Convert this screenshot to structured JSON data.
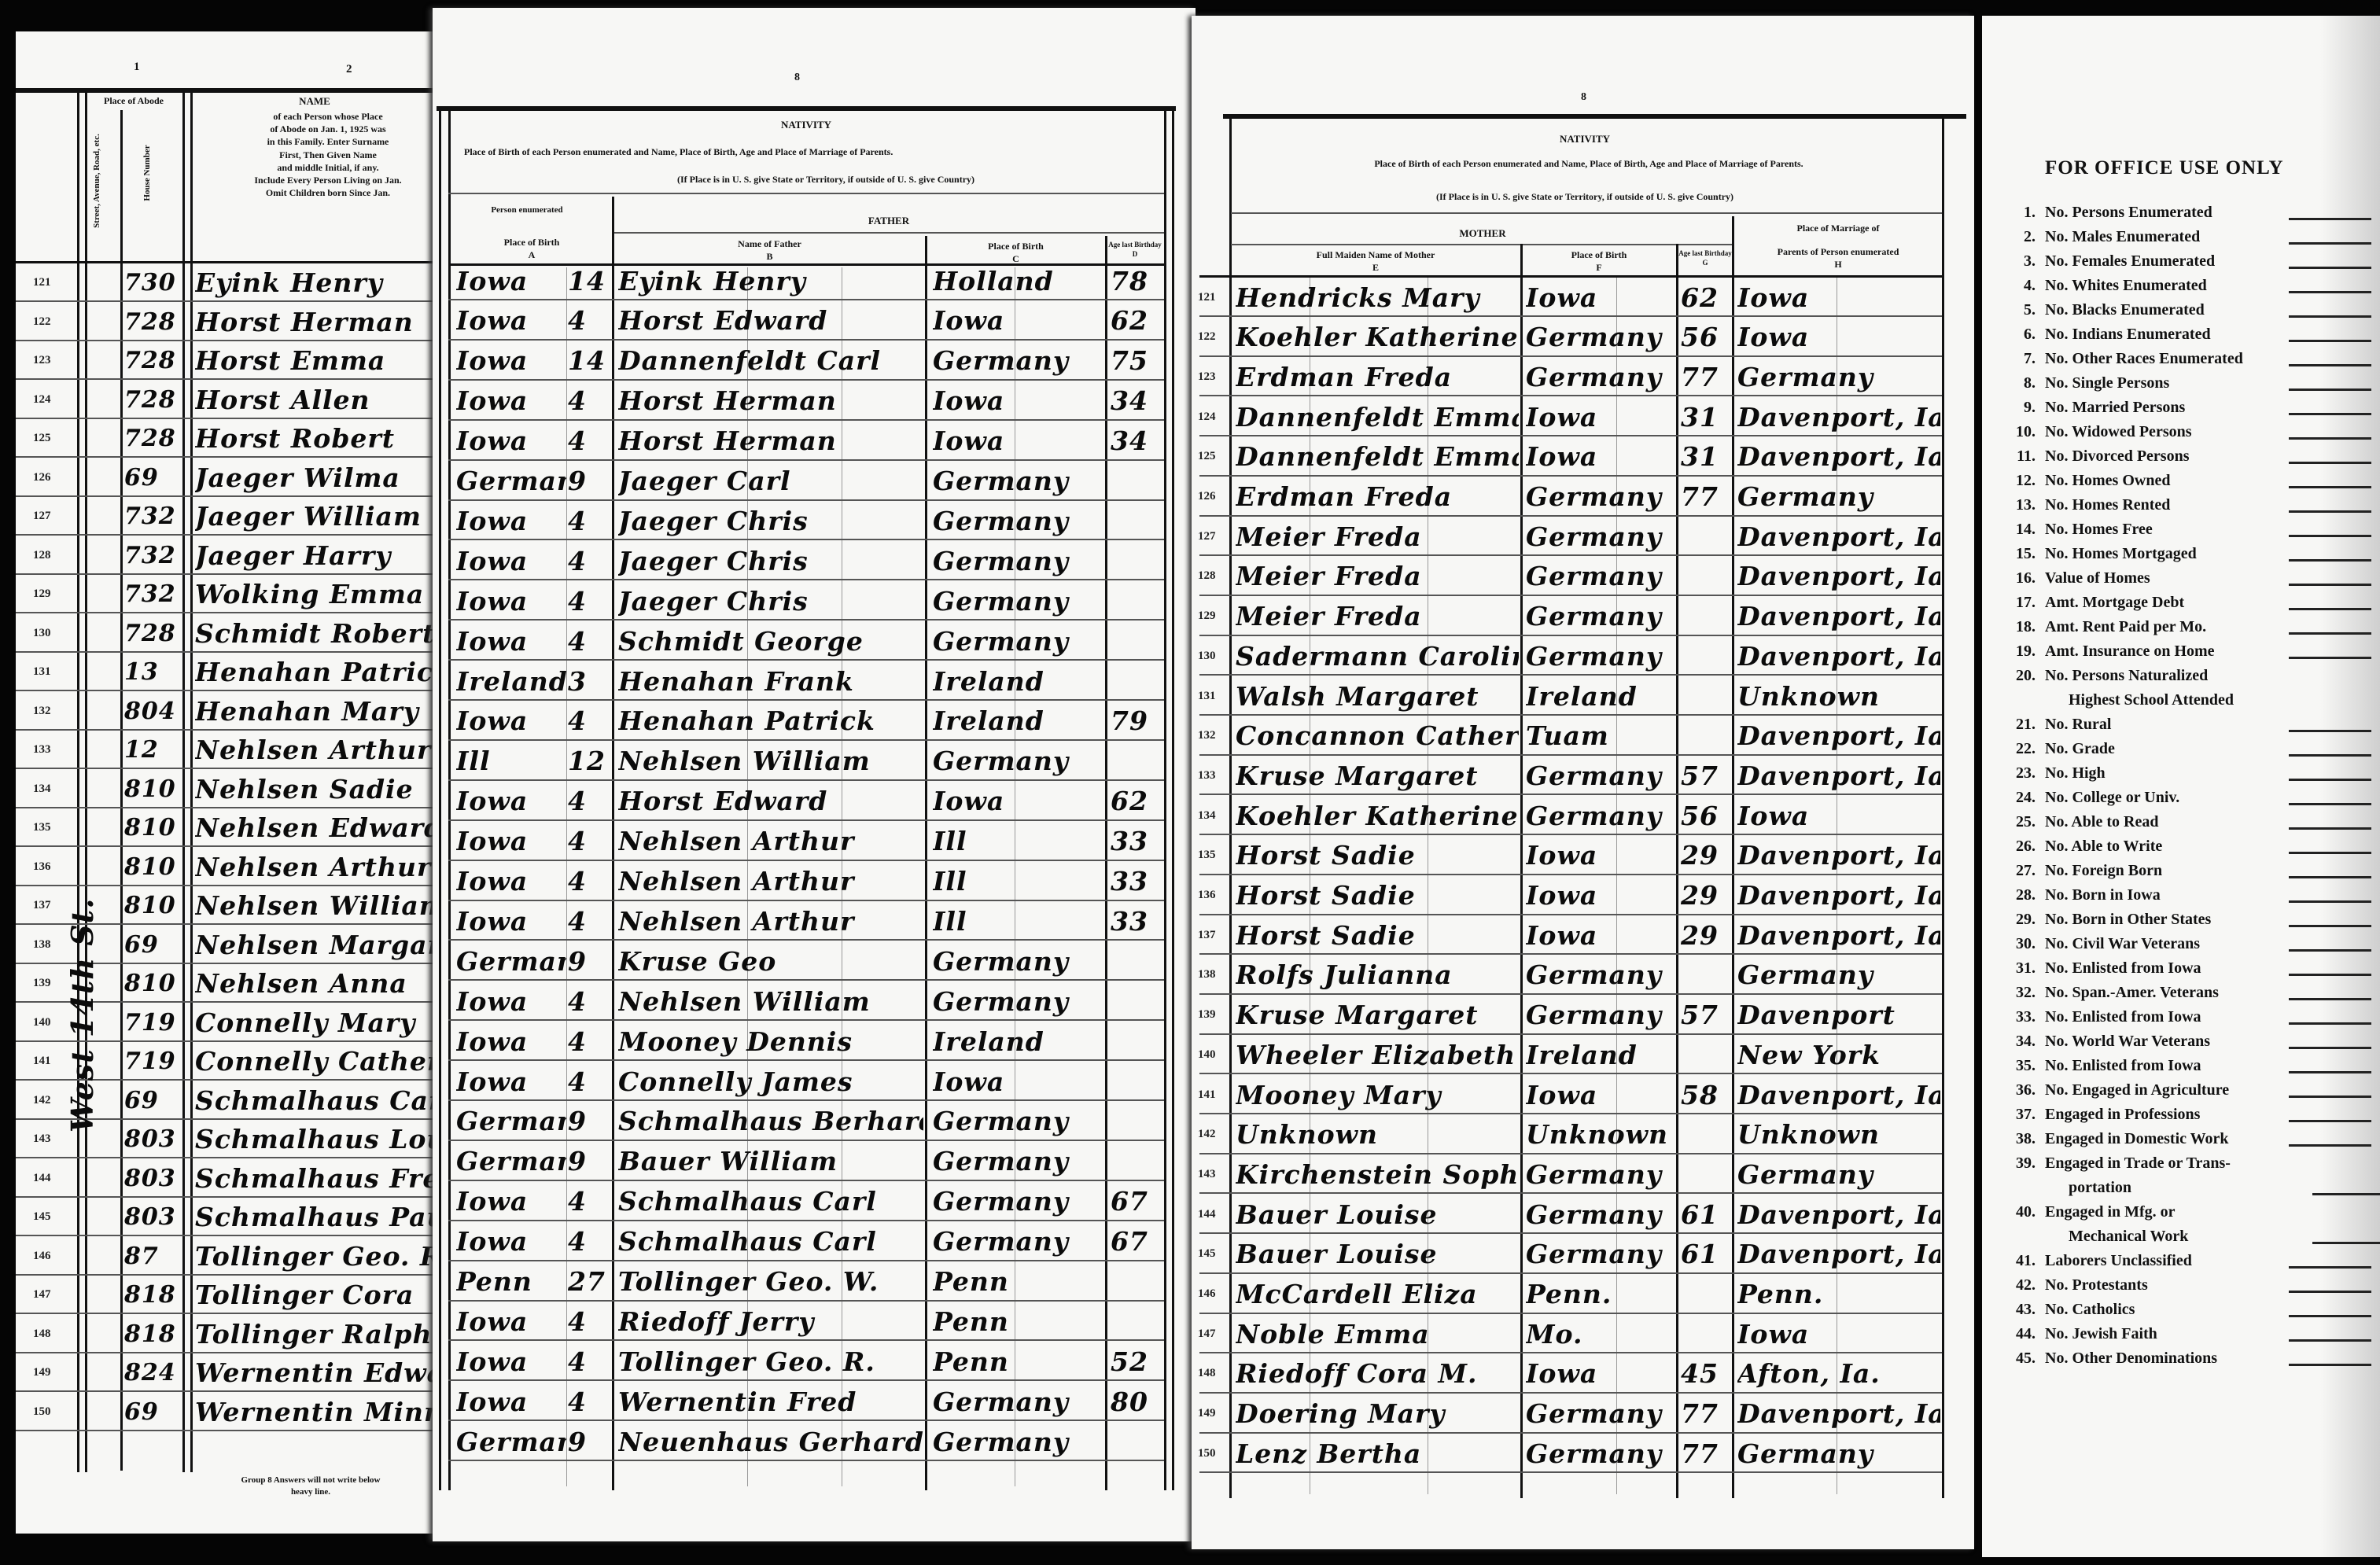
{
  "left_page": {
    "column_numbers": [
      "1",
      "2"
    ],
    "place_of_abode": "Place of Abode",
    "street_header": "Street, Avenue, Road, etc.",
    "house_header": "House Number",
    "name_title": "NAME",
    "name_instructions": [
      "of each Person whose Place",
      "of Abode on Jan. 1, 1925 was",
      "in this Family. Enter Surname",
      "First, Then Given Name",
      "and middle Initial, if any.",
      "Include Every Person Living on Jan.",
      "Omit Children born Since Jan."
    ],
    "street_written": "West 14th St.",
    "footer": [
      "Group 8 Answers will not write below",
      "heavy line."
    ]
  },
  "father_page": {
    "column_number": "8",
    "nativity": "NATIVITY",
    "instruction1": "Place of Birth of each Person enumerated and Name, Place of Birth, Age and Place of Marriage of Parents.",
    "instruction2": "(If Place is in U. S. give State or Territory, if outside of U. S. give Country)",
    "person_enumerated": "Person enumerated",
    "col_a": "Place of Birth",
    "col_a_letter": "A",
    "father": "FATHER",
    "col_b": "Name of Father",
    "col_b_letter": "B",
    "col_c": "Place of Birth",
    "col_c_letter": "C",
    "col_d": "Age last Birthday",
    "col_d_letter": "D"
  },
  "mother_page": {
    "column_number": "8",
    "nativity": "NATIVITY",
    "instruction1": "Place of Birth of each Person enumerated and Name, Place of Birth, Age and Place of Marriage of Parents.",
    "instruction2": "(If Place is in U. S. give State or Territory, if outside of U. S. give Country)",
    "mother": "MOTHER",
    "col_e": "Full Maiden Name of Mother",
    "col_e_letter": "E",
    "col_f": "Place of Birth",
    "col_f_letter": "F",
    "col_g": "Age last Birthday",
    "col_g_letter": "G",
    "col_h_1": "Place of Marriage of",
    "col_h_2": "Parents of Person enumerated",
    "col_h_letter": "H"
  },
  "rows": [
    {
      "line": "121",
      "house": "730",
      "name": "Eyink Henry",
      "birth": "Iowa",
      "code": "14",
      "father": "Eyink Henry",
      "father_birth": "Holland",
      "father_age": "78",
      "mother": "Hendricks Mary",
      "mother_birth": "Iowa",
      "mother_age": "62",
      "marriage": "Iowa"
    },
    {
      "line": "122",
      "house": "728",
      "name": "Horst Herman",
      "birth": "Iowa",
      "code": "4",
      "father": "Horst Edward",
      "father_birth": "Iowa",
      "father_age": "62",
      "mother": "Koehler Katherine",
      "mother_birth": "Germany",
      "mother_age": "56",
      "marriage": "Iowa"
    },
    {
      "line": "123",
      "house": "728",
      "name": "Horst Emma",
      "birth": "Iowa",
      "code": "14",
      "father": "Dannenfeldt Carl",
      "father_birth": "Germany",
      "father_age": "75",
      "mother": "Erdman Freda",
      "mother_birth": "Germany",
      "mother_age": "77",
      "marriage": "Germany"
    },
    {
      "line": "124",
      "house": "728",
      "name": "Horst Allen",
      "birth": "Iowa",
      "code": "4",
      "father": "Horst Herman",
      "father_birth": "Iowa",
      "father_age": "34",
      "mother": "Dannenfeldt Emma",
      "mother_birth": "Iowa",
      "mother_age": "31",
      "marriage": "Davenport, Ia"
    },
    {
      "line": "125",
      "house": "728",
      "name": "Horst Robert",
      "birth": "Iowa",
      "code": "4",
      "father": "Horst Herman",
      "father_birth": "Iowa",
      "father_age": "34",
      "mother": "Dannenfeldt Emma",
      "mother_birth": "Iowa",
      "mother_age": "31",
      "marriage": "Davenport, Ia"
    },
    {
      "line": "126",
      "house": "69",
      "name": "Jaeger Wilma",
      "birth": "Germany",
      "code": "9",
      "father": "Jaeger Carl",
      "father_birth": "Germany",
      "father_age": "",
      "mother": "Erdman Freda",
      "mother_birth": "Germany",
      "mother_age": "77",
      "marriage": "Germany"
    },
    {
      "line": "127",
      "house": "732",
      "name": "Jaeger William",
      "birth": "Iowa",
      "code": "4",
      "father": "Jaeger Chris",
      "father_birth": "Germany",
      "father_age": "",
      "mother": "Meier Freda",
      "mother_birth": "Germany",
      "mother_age": "",
      "marriage": "Davenport, Ia"
    },
    {
      "line": "128",
      "house": "732",
      "name": "Jaeger Harry",
      "birth": "Iowa",
      "code": "4",
      "father": "Jaeger Chris",
      "father_birth": "Germany",
      "father_age": "",
      "mother": "Meier Freda",
      "mother_birth": "Germany",
      "mother_age": "",
      "marriage": "Davenport, Ia"
    },
    {
      "line": "129",
      "house": "732",
      "name": "Wolking Emma",
      "birth": "Iowa",
      "code": "4",
      "father": "Jaeger Chris",
      "father_birth": "Germany",
      "father_age": "",
      "mother": "Meier Freda",
      "mother_birth": "Germany",
      "mother_age": "",
      "marriage": "Davenport, Ia"
    },
    {
      "line": "130",
      "house": "728",
      "name": "Schmidt Robert",
      "birth": "Iowa",
      "code": "4",
      "father": "Schmidt George",
      "father_birth": "Germany",
      "father_age": "",
      "mother": "Sadermann Caroline",
      "mother_birth": "Germany",
      "mother_age": "",
      "marriage": "Davenport, Ia"
    },
    {
      "line": "131",
      "house": "13",
      "name": "Henahan Patrick",
      "birth": "Ireland",
      "code": "3",
      "father": "Henahan Frank",
      "father_birth": "Ireland",
      "father_age": "",
      "mother": "Walsh Margaret",
      "mother_birth": "Ireland",
      "mother_age": "",
      "marriage": "Unknown"
    },
    {
      "line": "132",
      "house": "804",
      "name": "Henahan Mary",
      "birth": "Iowa",
      "code": "4",
      "father": "Henahan Patrick",
      "father_birth": "Ireland",
      "father_age": "79",
      "mother": "Concannon Catherine",
      "mother_birth": "Tuam",
      "mother_age": "",
      "marriage": "Davenport, Ia"
    },
    {
      "line": "133",
      "house": "12",
      "name": "Nehlsen Arthur",
      "birth": "Ill",
      "code": "12",
      "father": "Nehlsen William",
      "father_birth": "Germany",
      "father_age": "",
      "mother": "Kruse Margaret",
      "mother_birth": "Germany",
      "mother_age": "57",
      "marriage": "Davenport, Ia"
    },
    {
      "line": "134",
      "house": "810",
      "name": "Nehlsen Sadie",
      "birth": "Iowa",
      "code": "4",
      "father": "Horst Edward",
      "father_birth": "Iowa",
      "father_age": "62",
      "mother": "Koehler Katherine",
      "mother_birth": "Germany",
      "mother_age": "56",
      "marriage": "Iowa"
    },
    {
      "line": "135",
      "house": "810",
      "name": "Nehlsen Edward",
      "birth": "Iowa",
      "code": "4",
      "father": "Nehlsen Arthur",
      "father_birth": "Ill",
      "father_age": "33",
      "mother": "Horst Sadie",
      "mother_birth": "Iowa",
      "mother_age": "29",
      "marriage": "Davenport, Ia"
    },
    {
      "line": "136",
      "house": "810",
      "name": "Nehlsen Arthur",
      "birth": "Iowa",
      "code": "4",
      "father": "Nehlsen Arthur",
      "father_birth": "Ill",
      "father_age": "33",
      "mother": "Horst Sadie",
      "mother_birth": "Iowa",
      "mother_age": "29",
      "marriage": "Davenport, Ia"
    },
    {
      "line": "137",
      "house": "810",
      "name": "Nehlsen William",
      "birth": "Iowa",
      "code": "4",
      "father": "Nehlsen Arthur",
      "father_birth": "Ill",
      "father_age": "33",
      "mother": "Horst Sadie",
      "mother_birth": "Iowa",
      "mother_age": "29",
      "marriage": "Davenport, Ia"
    },
    {
      "line": "138",
      "house": "69",
      "name": "Nehlsen Margaret",
      "birth": "Germany",
      "code": "9",
      "father": "Kruse Geo",
      "father_birth": "Germany",
      "father_age": "",
      "mother": "Rolfs Julianna",
      "mother_birth": "Germany",
      "mother_age": "",
      "marriage": "Germany"
    },
    {
      "line": "139",
      "house": "810",
      "name": "Nehlsen Anna",
      "birth": "Iowa",
      "code": "4",
      "father": "Nehlsen William",
      "father_birth": "Germany",
      "father_age": "",
      "mother": "Kruse Margaret",
      "mother_birth": "Germany",
      "mother_age": "57",
      "marriage": "Davenport"
    },
    {
      "line": "140",
      "house": "719",
      "name": "Connelly Mary",
      "birth": "Iowa",
      "code": "4",
      "father": "Mooney Dennis",
      "father_birth": "Ireland",
      "father_age": "",
      "mother": "Wheeler Elizabeth",
      "mother_birth": "Ireland",
      "mother_age": "",
      "marriage": "New York"
    },
    {
      "line": "141",
      "house": "719",
      "name": "Connelly Catherine",
      "birth": "Iowa",
      "code": "4",
      "father": "Connelly James",
      "father_birth": "Iowa",
      "father_age": "",
      "mother": "Mooney Mary",
      "mother_birth": "Iowa",
      "mother_age": "58",
      "marriage": "Davenport, Ia"
    },
    {
      "line": "142",
      "house": "69",
      "name": "Schmalhaus Carl",
      "birth": "Germany",
      "code": "9",
      "father": "Schmalhaus Berhard",
      "father_birth": "Germany",
      "father_age": "",
      "mother": "Unknown",
      "mother_birth": "Unknown",
      "mother_age": "",
      "marriage": "Unknown"
    },
    {
      "line": "143",
      "house": "803",
      "name": "Schmalhaus Louise",
      "birth": "Germany",
      "code": "9",
      "father": "Bauer William",
      "father_birth": "Germany",
      "father_age": "",
      "mother": "Kirchenstein Sophia",
      "mother_birth": "Germany",
      "mother_age": "",
      "marriage": "Germany"
    },
    {
      "line": "144",
      "house": "803",
      "name": "Schmalhaus Fred",
      "birth": "Iowa",
      "code": "4",
      "father": "Schmalhaus Carl",
      "father_birth": "Germany",
      "father_age": "67",
      "mother": "Bauer Louise",
      "mother_birth": "Germany",
      "mother_age": "61",
      "marriage": "Davenport, Ia"
    },
    {
      "line": "145",
      "house": "803",
      "name": "Schmalhaus Paul",
      "birth": "Iowa",
      "code": "4",
      "father": "Schmalhaus Carl",
      "father_birth": "Germany",
      "father_age": "67",
      "mother": "Bauer Louise",
      "mother_birth": "Germany",
      "mother_age": "61",
      "marriage": "Davenport, Ia"
    },
    {
      "line": "146",
      "house": "87",
      "name": "Tollinger Geo. R.",
      "birth": "Penn",
      "code": "27",
      "father": "Tollinger Geo. W.",
      "father_birth": "Penn",
      "father_age": "",
      "mother": "McCardell Eliza",
      "mother_birth": "Penn.",
      "mother_age": "",
      "marriage": "Penn."
    },
    {
      "line": "147",
      "house": "818",
      "name": "Tollinger Cora",
      "birth": "Iowa",
      "code": "4",
      "father": "Riedoff Jerry",
      "father_birth": "Penn",
      "father_age": "",
      "mother": "Noble Emma",
      "mother_birth": "Mo.",
      "mother_age": "",
      "marriage": "Iowa"
    },
    {
      "line": "148",
      "house": "818",
      "name": "Tollinger Ralph",
      "birth": "Iowa",
      "code": "4",
      "father": "Tollinger Geo. R.",
      "father_birth": "Penn",
      "father_age": "52",
      "mother": "Riedoff Cora M.",
      "mother_birth": "Iowa",
      "mother_age": "45",
      "marriage": "Afton, Ia."
    },
    {
      "line": "149",
      "house": "824",
      "name": "Wernentin Edward",
      "birth": "Iowa",
      "code": "4",
      "father": "Wernentin Fred",
      "father_birth": "Germany",
      "father_age": "80",
      "mother": "Doering Mary",
      "mother_birth": "Germany",
      "mother_age": "77",
      "marriage": "Davenport, Ia"
    },
    {
      "line": "150",
      "house": "69",
      "name": "Wernentin Minnie",
      "birth": "Germany",
      "code": "9",
      "father": "Neuenhaus Gerhard",
      "father_birth": "Germany",
      "father_age": "",
      "mother": "Lenz Bertha",
      "mother_birth": "Germany",
      "mother_age": "77",
      "marriage": "Germany"
    }
  ],
  "office": {
    "title": "FOR OFFICE USE ONLY",
    "items": [
      {
        "num": "1.",
        "label": "No. Persons Enumerated"
      },
      {
        "num": "2.",
        "label": "No. Males Enumerated"
      },
      {
        "num": "3.",
        "label": "No. Females Enumerated"
      },
      {
        "num": "4.",
        "label": "No. Whites Enumerated"
      },
      {
        "num": "5.",
        "label": "No. Blacks Enumerated"
      },
      {
        "num": "6.",
        "label": "No. Indians Enumerated"
      },
      {
        "num": "7.",
        "label": "No. Other Races Enumerated"
      },
      {
        "num": "8.",
        "label": "No. Single Persons"
      },
      {
        "num": "9.",
        "label": "No. Married Persons"
      },
      {
        "num": "10.",
        "label": "No. Widowed Persons"
      },
      {
        "num": "11.",
        "label": "No. Divorced Persons"
      },
      {
        "num": "12.",
        "label": "No. Homes Owned"
      },
      {
        "num": "13.",
        "label": "No. Homes Rented"
      },
      {
        "num": "14.",
        "label": "No. Homes Free"
      },
      {
        "num": "15.",
        "label": "No. Homes Mortgaged"
      },
      {
        "num": "16.",
        "label": "Value of Homes"
      },
      {
        "num": "17.",
        "label": "Amt. Mortgage Debt"
      },
      {
        "num": "18.",
        "label": "Amt. Rent Paid per Mo."
      },
      {
        "num": "19.",
        "label": "Amt. Insurance on Home"
      },
      {
        "num": "20.",
        "label": "No. Persons Naturalized"
      },
      {
        "num": "",
        "label": "Highest School Attended",
        "sub": true
      },
      {
        "num": "21.",
        "label": "No. Rural"
      },
      {
        "num": "22.",
        "label": "No. Grade"
      },
      {
        "num": "23.",
        "label": "No. High"
      },
      {
        "num": "24.",
        "label": "No. College or Univ."
      },
      {
        "num": "25.",
        "label": "No. Able to Read"
      },
      {
        "num": "26.",
        "label": "No. Able to Write"
      },
      {
        "num": "27.",
        "label": "No. Foreign Born"
      },
      {
        "num": "28.",
        "label": "No. Born in Iowa"
      },
      {
        "num": "29.",
        "label": "No. Born in Other States"
      },
      {
        "num": "30.",
        "label": "No. Civil War Veterans"
      },
      {
        "num": "31.",
        "label": "No. Enlisted from Iowa"
      },
      {
        "num": "32.",
        "label": "No. Span.-Amer. Veterans"
      },
      {
        "num": "33.",
        "label": "No. Enlisted from Iowa"
      },
      {
        "num": "34.",
        "label": "No. World War Veterans"
      },
      {
        "num": "35.",
        "label": "No. Enlisted from Iowa"
      },
      {
        "num": "36.",
        "label": "No. Engaged in Agriculture"
      },
      {
        "num": "37.",
        "label": "Engaged in Professions"
      },
      {
        "num": "38.",
        "label": "Engaged in Domestic Work"
      },
      {
        "num": "39.",
        "label": "Engaged in Trade or Trans-"
      },
      {
        "num": "",
        "label": "portation",
        "sub": true
      },
      {
        "num": "40.",
        "label": "Engaged in Mfg. or"
      },
      {
        "num": "",
        "label": "Mechanical Work",
        "sub": true
      },
      {
        "num": "41.",
        "label": "Laborers Unclassified"
      },
      {
        "num": "42.",
        "label": "No. Protestants"
      },
      {
        "num": "43.",
        "label": "No. Catholics"
      },
      {
        "num": "44.",
        "label": "No. Jewish Faith"
      },
      {
        "num": "45.",
        "label": "No. Other Denominations"
      }
    ]
  }
}
